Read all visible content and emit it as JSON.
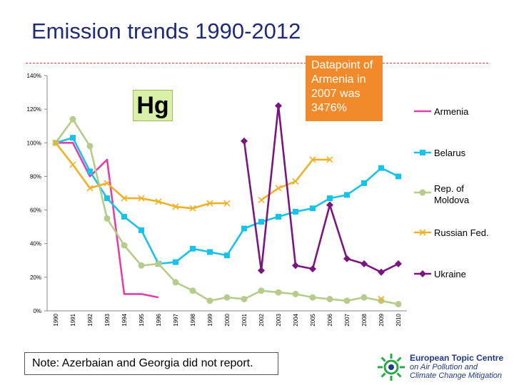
{
  "page": {
    "title": "Emission trends 1990-2012",
    "note": "Note:  Azerbaian and Georgia  did not report.",
    "hg_label": "Hg",
    "callout": "Datapoint of Armenia in 2007 was 3476%",
    "logo": {
      "line1": "European Topic Centre",
      "line2": "on Air Pollution and",
      "line3": "Climate Change Mitigation"
    }
  },
  "chart_data": {
    "type": "line",
    "categories": [
      "1990",
      "1991",
      "1992",
      "1993",
      "1994",
      "1995",
      "1996",
      "1997",
      "1998",
      "1999",
      "2000",
      "2001",
      "2002",
      "2003",
      "2004",
      "2005",
      "2006",
      "2007",
      "2008",
      "2009",
      "2010"
    ],
    "ylim": [
      0,
      140
    ],
    "yticks": [
      "0%",
      "20%",
      "40%",
      "60%",
      "80%",
      "100%",
      "120%",
      "140%"
    ],
    "gridlines": false,
    "legend_position": "right",
    "series": [
      {
        "name": "Armenia",
        "color": "#e040a8",
        "marker": "none",
        "values": [
          100,
          100,
          80,
          90,
          10,
          10,
          8,
          null,
          null,
          null,
          null,
          null,
          null,
          null,
          null,
          null,
          null,
          null,
          null,
          null,
          null
        ]
      },
      {
        "name": "Belarus",
        "color": "#19c3e8",
        "marker": "square",
        "values": [
          100,
          103,
          83,
          67,
          56,
          48,
          28,
          29,
          37,
          35,
          33,
          49,
          53,
          56,
          59,
          61,
          67,
          69,
          76,
          85,
          80
        ]
      },
      {
        "name": "Rep. of Moldova",
        "color": "#b5cc8a",
        "marker": "circle",
        "values": [
          100,
          114,
          98,
          55,
          39,
          27,
          28,
          17,
          12,
          6,
          8,
          7,
          12,
          11,
          10,
          8,
          7,
          6,
          8,
          6,
          4
        ]
      },
      {
        "name": "Russian Fed.",
        "color": "#f0b028",
        "marker": "x",
        "values": [
          100,
          87,
          73,
          76,
          67,
          67,
          65,
          62,
          61,
          64,
          64,
          null,
          66,
          73,
          77,
          90,
          90,
          null,
          null,
          7,
          null
        ]
      },
      {
        "name": "Ukraine",
        "color": "#7b1580",
        "marker": "diamond",
        "values": [
          null,
          null,
          null,
          null,
          null,
          null,
          null,
          null,
          null,
          null,
          null,
          101,
          24,
          122,
          27,
          25,
          63,
          31,
          28,
          23,
          28
        ]
      }
    ]
  }
}
